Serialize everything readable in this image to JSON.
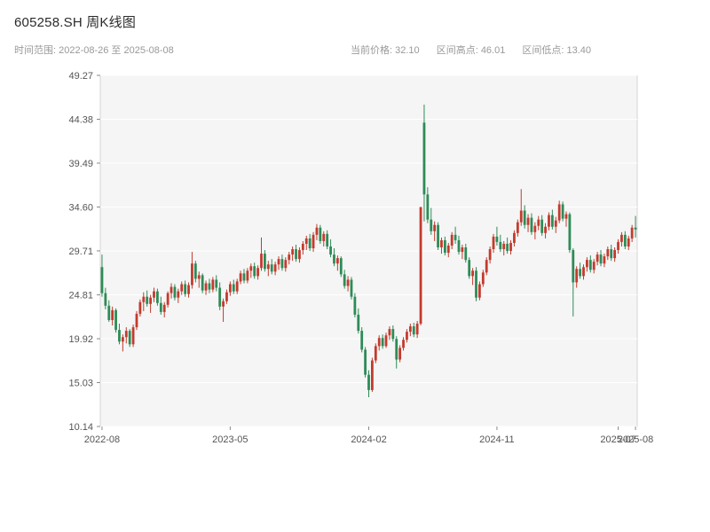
{
  "header": {
    "title": "605258.SH 周K线图",
    "range_label": "时间范围: 2022-08-26 至 2025-08-08",
    "stats": {
      "current": "当前价格: 32.10",
      "high": "区间高点: 46.01",
      "low": "区间低点: 13.40"
    }
  },
  "chart_data": {
    "type": "candlestick",
    "symbol": "605258.SH",
    "frequency": "weekly",
    "title": "605258.SH 周K线图",
    "start_date": "2022-08-26",
    "end_date": "2025-08-08",
    "current_price": 32.1,
    "range_high": 46.01,
    "range_low": 13.4,
    "ylim": [
      10.14,
      49.27
    ],
    "y_ticks": [
      49.27,
      44.38,
      39.49,
      34.6,
      29.71,
      24.81,
      19.92,
      15.03,
      10.14
    ],
    "x_ticks": [
      {
        "index": 0,
        "label": "2022-08"
      },
      {
        "index": 37,
        "label": "2023-05"
      },
      {
        "index": 77,
        "label": "2024-02"
      },
      {
        "index": 114,
        "label": "2024-11"
      },
      {
        "index": 149,
        "label": "2025-07"
      },
      {
        "index": 154,
        "label": "2025-08"
      }
    ],
    "up_color": "#c23b2e",
    "down_color": "#2e8b57",
    "grid": true,
    "plot_bg": "#f5f5f5",
    "legend": "none",
    "candles": [
      [
        27.9,
        29.3,
        24.6,
        25.0
      ],
      [
        25.0,
        25.6,
        23.2,
        23.6
      ],
      [
        23.6,
        24.2,
        21.8,
        22.0
      ],
      [
        22.0,
        23.5,
        21.4,
        23.1
      ],
      [
        23.1,
        23.3,
        20.6,
        20.9
      ],
      [
        20.9,
        21.6,
        19.3,
        19.6
      ],
      [
        19.6,
        20.4,
        18.5,
        20.1
      ],
      [
        20.1,
        21.2,
        19.4,
        20.8
      ],
      [
        20.8,
        21.0,
        19.0,
        19.3
      ],
      [
        19.3,
        21.5,
        19.0,
        21.2
      ],
      [
        21.2,
        23.0,
        20.9,
        22.7
      ],
      [
        22.7,
        24.3,
        22.4,
        24.0
      ],
      [
        24.0,
        25.1,
        23.0,
        24.6
      ],
      [
        24.6,
        25.3,
        23.5,
        23.8
      ],
      [
        23.8,
        24.8,
        22.8,
        24.5
      ],
      [
        24.5,
        25.6,
        24.0,
        25.2
      ],
      [
        25.2,
        25.5,
        23.6,
        23.9
      ],
      [
        23.9,
        24.6,
        22.6,
        22.9
      ],
      [
        22.9,
        24.0,
        22.3,
        23.7
      ],
      [
        23.7,
        25.2,
        23.4,
        25.0
      ],
      [
        25.0,
        26.1,
        24.4,
        25.7
      ],
      [
        25.7,
        26.0,
        24.2,
        24.5
      ],
      [
        24.5,
        25.5,
        23.9,
        25.2
      ],
      [
        25.2,
        26.3,
        24.8,
        26.0
      ],
      [
        26.0,
        26.4,
        24.6,
        24.9
      ],
      [
        24.9,
        26.2,
        24.5,
        25.9
      ],
      [
        25.9,
        29.6,
        25.5,
        28.3
      ],
      [
        28.3,
        28.6,
        26.2,
        26.6
      ],
      [
        26.6,
        27.4,
        25.6,
        27.0
      ],
      [
        27.0,
        27.2,
        25.0,
        25.3
      ],
      [
        25.3,
        26.4,
        24.8,
        26.1
      ],
      [
        26.1,
        26.6,
        25.0,
        25.4
      ],
      [
        25.4,
        26.8,
        25.1,
        26.5
      ],
      [
        26.5,
        27.0,
        25.2,
        25.6
      ],
      [
        25.6,
        26.2,
        23.1,
        23.5
      ],
      [
        23.5,
        24.4,
        21.8,
        24.1
      ],
      [
        24.1,
        25.4,
        23.8,
        25.1
      ],
      [
        25.1,
        26.3,
        24.7,
        26.0
      ],
      [
        26.0,
        26.5,
        24.9,
        25.2
      ],
      [
        25.2,
        26.6,
        24.9,
        26.3
      ],
      [
        26.3,
        27.5,
        26.0,
        27.2
      ],
      [
        27.2,
        27.7,
        26.1,
        26.4
      ],
      [
        26.4,
        27.8,
        26.1,
        27.5
      ],
      [
        27.5,
        28.3,
        26.7,
        28.0
      ],
      [
        28.0,
        28.4,
        26.6,
        26.9
      ],
      [
        26.9,
        28.1,
        26.5,
        27.8
      ],
      [
        27.8,
        31.2,
        27.5,
        29.4
      ],
      [
        29.4,
        29.8,
        27.4,
        27.7
      ],
      [
        27.7,
        28.6,
        26.9,
        28.2
      ],
      [
        28.2,
        28.8,
        27.1,
        27.4
      ],
      [
        27.4,
        28.5,
        27.0,
        28.2
      ],
      [
        28.2,
        29.1,
        27.6,
        28.8
      ],
      [
        28.8,
        29.3,
        27.5,
        27.8
      ],
      [
        27.8,
        29.0,
        27.4,
        28.7
      ],
      [
        28.7,
        29.6,
        28.2,
        29.3
      ],
      [
        29.3,
        30.2,
        28.6,
        29.9
      ],
      [
        29.9,
        30.4,
        28.5,
        28.8
      ],
      [
        28.8,
        30.1,
        28.4,
        29.8
      ],
      [
        29.8,
        30.8,
        29.3,
        30.5
      ],
      [
        30.5,
        31.4,
        29.8,
        31.1
      ],
      [
        31.1,
        31.6,
        29.7,
        30.0
      ],
      [
        30.0,
        31.8,
        29.6,
        31.5
      ],
      [
        31.5,
        32.7,
        30.9,
        32.3
      ],
      [
        32.3,
        32.6,
        30.5,
        30.8
      ],
      [
        30.8,
        31.9,
        30.2,
        31.6
      ],
      [
        31.6,
        32.0,
        29.9,
        30.2
      ],
      [
        30.2,
        31.0,
        29.0,
        29.3
      ],
      [
        29.3,
        30.0,
        28.0,
        28.3
      ],
      [
        28.3,
        29.2,
        27.5,
        28.9
      ],
      [
        28.9,
        29.1,
        26.8,
        27.1
      ],
      [
        27.1,
        27.6,
        25.5,
        25.8
      ],
      [
        25.8,
        26.9,
        25.2,
        26.5
      ],
      [
        26.5,
        26.8,
        24.3,
        24.6
      ],
      [
        24.6,
        25.0,
        22.3,
        22.6
      ],
      [
        22.6,
        23.3,
        20.5,
        20.8
      ],
      [
        20.8,
        21.2,
        18.4,
        18.7
      ],
      [
        18.7,
        19.0,
        15.6,
        15.9
      ],
      [
        15.9,
        16.4,
        13.4,
        14.2
      ],
      [
        14.2,
        17.8,
        14.0,
        17.5
      ],
      [
        17.5,
        19.4,
        17.2,
        19.1
      ],
      [
        19.1,
        20.3,
        18.6,
        20.0
      ],
      [
        20.0,
        20.4,
        18.8,
        19.1
      ],
      [
        19.1,
        20.6,
        18.9,
        20.3
      ],
      [
        20.3,
        21.3,
        19.8,
        21.0
      ],
      [
        21.0,
        21.4,
        19.6,
        19.9
      ],
      [
        19.9,
        20.2,
        16.6,
        17.6
      ],
      [
        17.6,
        19.2,
        17.3,
        18.9
      ],
      [
        18.9,
        20.1,
        18.6,
        19.8
      ],
      [
        19.8,
        21.0,
        19.5,
        20.7
      ],
      [
        20.7,
        21.6,
        20.2,
        21.3
      ],
      [
        21.3,
        21.7,
        20.1,
        20.4
      ],
      [
        20.4,
        21.9,
        20.0,
        21.6
      ],
      [
        21.6,
        34.6,
        21.4,
        34.6
      ],
      [
        44.0,
        46.01,
        33.0,
        36.0
      ],
      [
        36.0,
        36.8,
        32.8,
        33.2
      ],
      [
        33.2,
        34.5,
        31.5,
        31.9
      ],
      [
        31.9,
        33.0,
        30.8,
        32.6
      ],
      [
        32.6,
        32.9,
        29.8,
        30.1
      ],
      [
        30.1,
        31.2,
        29.4,
        30.9
      ],
      [
        30.9,
        31.3,
        29.2,
        29.5
      ],
      [
        29.5,
        30.6,
        29.0,
        30.3
      ],
      [
        30.3,
        31.8,
        29.9,
        31.5
      ],
      [
        31.5,
        32.4,
        30.5,
        30.9
      ],
      [
        30.9,
        31.4,
        29.3,
        29.6
      ],
      [
        29.6,
        30.4,
        28.8,
        30.1
      ],
      [
        30.1,
        30.5,
        28.4,
        28.7
      ],
      [
        28.7,
        29.0,
        26.6,
        26.9
      ],
      [
        26.9,
        27.8,
        25.9,
        27.5
      ],
      [
        27.5,
        27.9,
        24.1,
        24.5
      ],
      [
        24.5,
        26.3,
        24.2,
        26.0
      ],
      [
        26.0,
        27.6,
        25.7,
        27.3
      ],
      [
        27.3,
        29.0,
        27.0,
        28.7
      ],
      [
        28.7,
        30.2,
        28.3,
        29.9
      ],
      [
        29.9,
        31.6,
        29.5,
        31.3
      ],
      [
        31.3,
        32.4,
        30.3,
        30.7
      ],
      [
        30.7,
        31.5,
        29.6,
        29.9
      ],
      [
        29.9,
        30.8,
        29.2,
        30.5
      ],
      [
        30.5,
        31.2,
        29.4,
        29.7
      ],
      [
        29.7,
        30.9,
        29.3,
        30.6
      ],
      [
        30.6,
        32.0,
        30.2,
        31.7
      ],
      [
        31.7,
        33.2,
        31.3,
        32.9
      ],
      [
        32.9,
        36.6,
        32.5,
        34.2
      ],
      [
        34.2,
        34.8,
        32.2,
        32.6
      ],
      [
        32.6,
        33.8,
        31.8,
        33.4
      ],
      [
        33.4,
        33.9,
        31.5,
        31.8
      ],
      [
        31.8,
        32.9,
        31.0,
        32.5
      ],
      [
        32.5,
        33.6,
        32.0,
        33.2
      ],
      [
        33.2,
        33.7,
        31.4,
        31.7
      ],
      [
        31.7,
        32.8,
        31.1,
        32.4
      ],
      [
        32.4,
        34.0,
        32.0,
        33.7
      ],
      [
        33.7,
        34.3,
        32.1,
        32.4
      ],
      [
        32.4,
        33.5,
        31.7,
        33.1
      ],
      [
        33.1,
        35.3,
        32.8,
        34.9
      ],
      [
        34.9,
        35.2,
        33.0,
        33.3
      ],
      [
        33.3,
        34.1,
        32.4,
        33.8
      ],
      [
        33.8,
        34.0,
        29.5,
        29.8
      ],
      [
        29.8,
        30.0,
        22.4,
        26.2
      ],
      [
        26.2,
        28.0,
        25.6,
        27.7
      ],
      [
        27.7,
        28.4,
        26.6,
        26.9
      ],
      [
        26.9,
        28.2,
        26.5,
        27.9
      ],
      [
        27.9,
        29.0,
        27.4,
        28.7
      ],
      [
        28.7,
        29.2,
        27.3,
        27.6
      ],
      [
        27.6,
        28.8,
        27.2,
        28.5
      ],
      [
        28.5,
        29.6,
        28.1,
        29.3
      ],
      [
        29.3,
        29.8,
        28.0,
        28.3
      ],
      [
        28.3,
        29.4,
        27.9,
        29.1
      ],
      [
        29.1,
        30.2,
        28.7,
        29.9
      ],
      [
        29.9,
        30.4,
        28.6,
        28.9
      ],
      [
        28.9,
        30.1,
        28.5,
        29.8
      ],
      [
        29.8,
        31.0,
        29.4,
        30.7
      ],
      [
        30.7,
        31.8,
        30.2,
        31.5
      ],
      [
        31.5,
        31.9,
        29.9,
        30.2
      ],
      [
        30.2,
        31.4,
        29.8,
        31.1
      ],
      [
        31.1,
        32.6,
        30.7,
        32.3
      ],
      [
        32.3,
        33.6,
        31.2,
        32.1
      ]
    ]
  }
}
